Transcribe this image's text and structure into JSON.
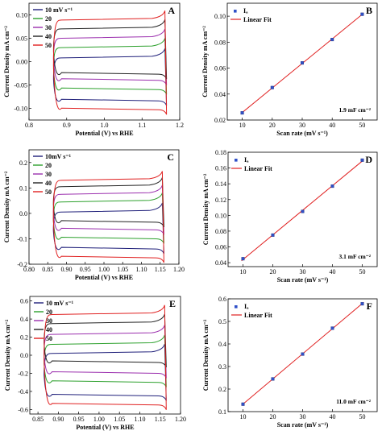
{
  "chart_data": [
    {
      "id": "A",
      "type": "line",
      "panel_label": "A",
      "xlabel": "Potential (V) vs RHE",
      "ylabel": "Current Density mA cm⁻²",
      "xlim": [
        0.8,
        1.2
      ],
      "ylim": [
        -0.125,
        0.125
      ],
      "xticks": [
        "0.8",
        "0.9",
        "1.0",
        "1.1",
        "1.2"
      ],
      "yticks": [
        "-0.10",
        "-0.05",
        "0.00",
        "0.05",
        "0.10"
      ],
      "x_range": [
        0.865,
        1.165
      ],
      "series": [
        {
          "name": "10 mV s⁻¹",
          "color": "#1f1f7a",
          "top": 0.008,
          "bottom": -0.084
        },
        {
          "name": "20",
          "color": "#2ca02c",
          "top": 0.03,
          "bottom": -0.06
        },
        {
          "name": "30",
          "color": "#9b2fae",
          "top": 0.05,
          "bottom": -0.04
        },
        {
          "name": "40",
          "color": "#222222",
          "top": 0.07,
          "bottom": -0.027
        },
        {
          "name": "50",
          "color": "#e02020",
          "top": 0.089,
          "bottom": -0.103
        }
      ]
    },
    {
      "id": "B",
      "type": "scatter",
      "panel_label": "B",
      "xlabel": "Scan rate (mV s⁻¹)",
      "ylabel": "Current Density mA cm⁻²",
      "xlim": [
        5,
        55
      ],
      "ylim": [
        0.02,
        0.11
      ],
      "xticks": [
        "10",
        "20",
        "30",
        "40",
        "50"
      ],
      "yticks": [
        "0.02",
        "0.04",
        "0.06",
        "0.08",
        "0.10"
      ],
      "x": [
        10,
        20,
        30,
        40,
        50
      ],
      "y": [
        0.0255,
        0.045,
        0.064,
        0.082,
        0.1015
      ],
      "legend": [
        "Iₐ",
        "Linear Fit"
      ],
      "annotation": "1.9 mF cm⁻²"
    },
    {
      "id": "C",
      "type": "line",
      "panel_label": "C",
      "xlabel": "Potential (V) vs RHE",
      "ylabel": "Current Density mA cm⁻²",
      "xlim": [
        0.8,
        1.2
      ],
      "ylim": [
        -0.2,
        0.25
      ],
      "xticks": [
        "0.80",
        "0.85",
        "0.90",
        "0.95",
        "1.00",
        "1.05",
        "1.10",
        "1.15",
        "1.20"
      ],
      "yticks": [
        "-0.2",
        "-0.1",
        "0.0",
        "0.1",
        "0.2"
      ],
      "x_range": [
        0.865,
        1.16
      ],
      "series": [
        {
          "name": "10mV s⁻¹",
          "color": "#1f1f7a",
          "top": 0.005,
          "bottom": -0.14
        },
        {
          "name": "20",
          "color": "#2ca02c",
          "top": 0.045,
          "bottom": -0.1
        },
        {
          "name": "30",
          "color": "#9b2fae",
          "top": 0.075,
          "bottom": -0.065
        },
        {
          "name": "40",
          "color": "#222222",
          "top": 0.105,
          "bottom": -0.035
        },
        {
          "name": "50",
          "color": "#e02020",
          "top": 0.13,
          "bottom": -0.175
        }
      ]
    },
    {
      "id": "D",
      "type": "scatter",
      "panel_label": "D",
      "xlabel": "Scan rate (mV s⁻¹)",
      "ylabel": "Current Density mA cm⁻²",
      "xlim": [
        5,
        55
      ],
      "ylim": [
        0.035,
        0.18
      ],
      "xticks": [
        "10",
        "20",
        "30",
        "40",
        "50"
      ],
      "yticks": [
        "0.04",
        "0.06",
        "0.08",
        "0.10",
        "0.12",
        "0.14",
        "0.16",
        "0.18"
      ],
      "x": [
        10,
        20,
        30,
        40,
        50
      ],
      "y": [
        0.045,
        0.075,
        0.105,
        0.137,
        0.17
      ],
      "legend": [
        "Iₐ",
        "Linear Fit"
      ],
      "annotation": "3.1 mF cm⁻²"
    },
    {
      "id": "E",
      "type": "line",
      "panel_label": "E",
      "xlabel": "Potential (V) vs RHE",
      "ylabel": "Current Density mA cm⁻²",
      "xlim": [
        0.83,
        1.2
      ],
      "ylim": [
        -0.65,
        0.65
      ],
      "xticks": [
        "0.85",
        "0.90",
        "0.95",
        "1.00",
        "1.05",
        "1.10",
        "1.15",
        "1.20"
      ],
      "yticks": [
        "-0.6",
        "-0.4",
        "-0.2",
        "0.0",
        "0.2",
        "0.4",
        "0.6"
      ],
      "x_range": [
        0.865,
        1.165
      ],
      "series": [
        {
          "name": "10 mV s⁻¹",
          "color": "#1f1f7a",
          "top": 0.02,
          "bottom": -0.45
        },
        {
          "name": "20",
          "color": "#2ca02c",
          "top": 0.12,
          "bottom": -0.3
        },
        {
          "name": "30",
          "color": "#9b2fae",
          "top": 0.23,
          "bottom": -0.2
        },
        {
          "name": "40",
          "color": "#222222",
          "top": 0.35,
          "bottom": -0.08
        },
        {
          "name": "50",
          "color": "#e02020",
          "top": 0.45,
          "bottom": -0.55
        }
      ]
    },
    {
      "id": "F",
      "type": "scatter",
      "panel_label": "F",
      "xlabel": "Scan rate (mV s⁻¹)",
      "ylabel": "Current Density mA cm⁻²",
      "xlim": [
        5,
        55
      ],
      "ylim": [
        0.1,
        0.6
      ],
      "xticks": [
        "10",
        "20",
        "30",
        "40",
        "50"
      ],
      "yticks": [
        "0.1",
        "0.2",
        "0.3",
        "0.4",
        "0.5",
        "0.6"
      ],
      "x": [
        10,
        20,
        30,
        40,
        50
      ],
      "y": [
        0.133,
        0.245,
        0.355,
        0.47,
        0.578
      ],
      "legend": [
        "Iₐ",
        "Linear Fit"
      ],
      "annotation": "11.0 mF cm⁻²"
    }
  ]
}
